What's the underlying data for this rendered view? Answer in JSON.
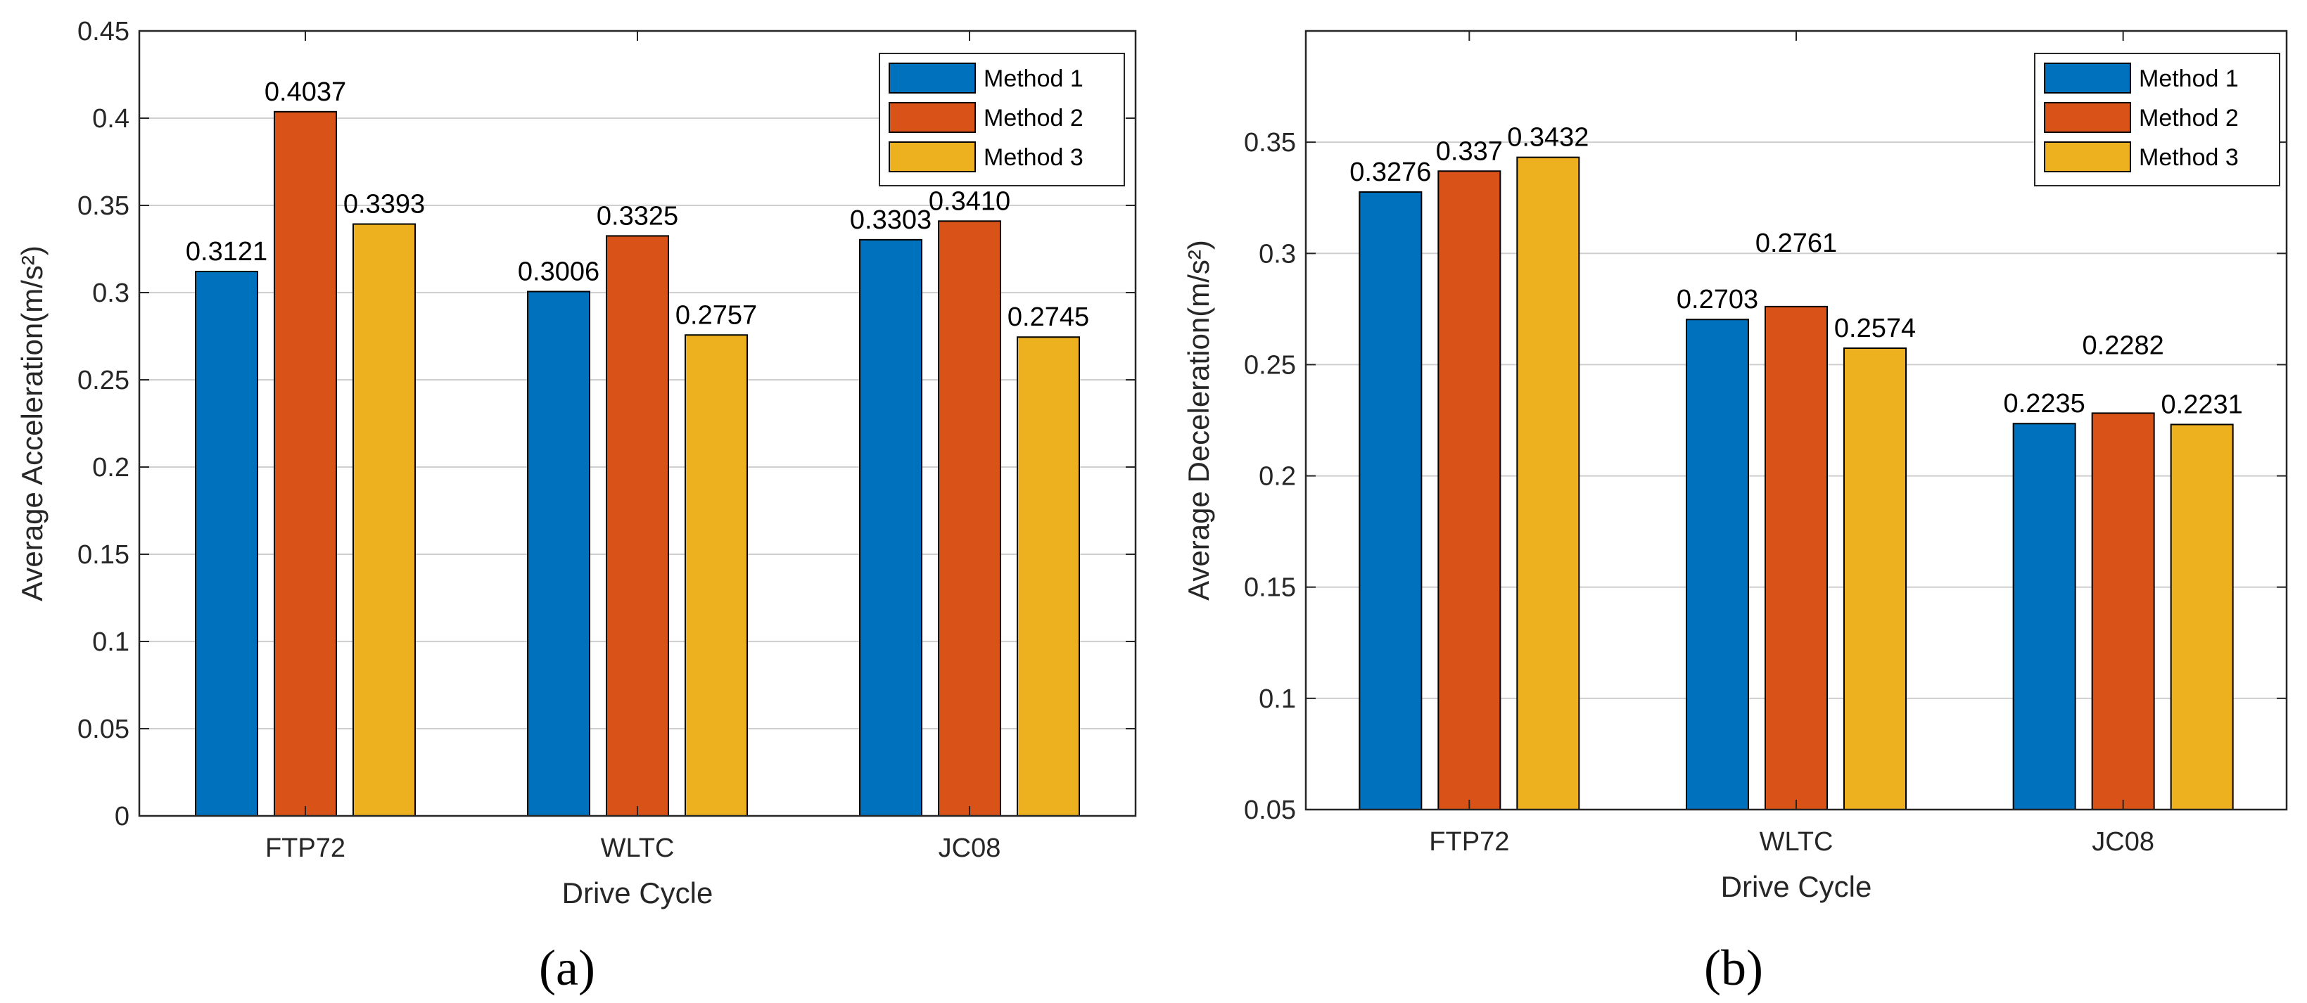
{
  "chart_data": [
    {
      "type": "bar",
      "panel_label": "(a)",
      "categories": [
        "FTP72",
        "WLTC",
        "JC08"
      ],
      "series": [
        {
          "name": "Method 1",
          "values": [
            0.3121,
            0.3006,
            0.3303
          ],
          "labels": [
            "0.3121",
            "0.3006",
            "0.3303"
          ]
        },
        {
          "name": "Method 2",
          "values": [
            0.4037,
            0.3325,
            0.341
          ],
          "labels": [
            "0.4037",
            "0.3325",
            "0.3410"
          ]
        },
        {
          "name": "Method 3",
          "values": [
            0.3393,
            0.2757,
            0.2745
          ],
          "labels": [
            "0.3393",
            "0.2757",
            "0.2745"
          ]
        }
      ],
      "xlabel": "Drive Cycle",
      "ylabel": "Average Acceleration(m/s²)",
      "ylim": [
        0,
        0.45
      ],
      "yticks": [
        "0",
        "0.05",
        "0.1",
        "0.15",
        "0.2",
        "0.25",
        "0.3",
        "0.35",
        "0.4",
        "0.45"
      ],
      "grid": "horizontal",
      "legend": "top-right"
    },
    {
      "type": "bar",
      "panel_label": "(b)",
      "categories": [
        "FTP72",
        "WLTC",
        "JC08"
      ],
      "series": [
        {
          "name": "Method 1",
          "values": [
            0.3276,
            0.2703,
            0.2235
          ],
          "labels": [
            "0.3276",
            "0.2703",
            "0.2235"
          ]
        },
        {
          "name": "Method 2",
          "values": [
            0.337,
            0.2761,
            0.2282
          ],
          "labels": [
            "0.337",
            "0.2761",
            "0.2282"
          ]
        },
        {
          "name": "Method 3",
          "values": [
            0.3432,
            0.2574,
            0.2231
          ],
          "labels": [
            "0.3432",
            "0.2574",
            "0.2231"
          ]
        }
      ],
      "xlabel": "Drive Cycle",
      "ylabel": "Average Deceleration(m/s²)",
      "ylim": [
        0.05,
        0.4
      ],
      "yticks": [
        "0.05",
        "0.1",
        "0.15",
        "0.2",
        "0.25",
        "0.3",
        "0.35"
      ],
      "grid": "horizontal",
      "legend": "top-right"
    }
  ],
  "colors": {
    "Method 1": "#0072BD",
    "Method 2": "#D95319",
    "Method 3": "#EDB120"
  }
}
